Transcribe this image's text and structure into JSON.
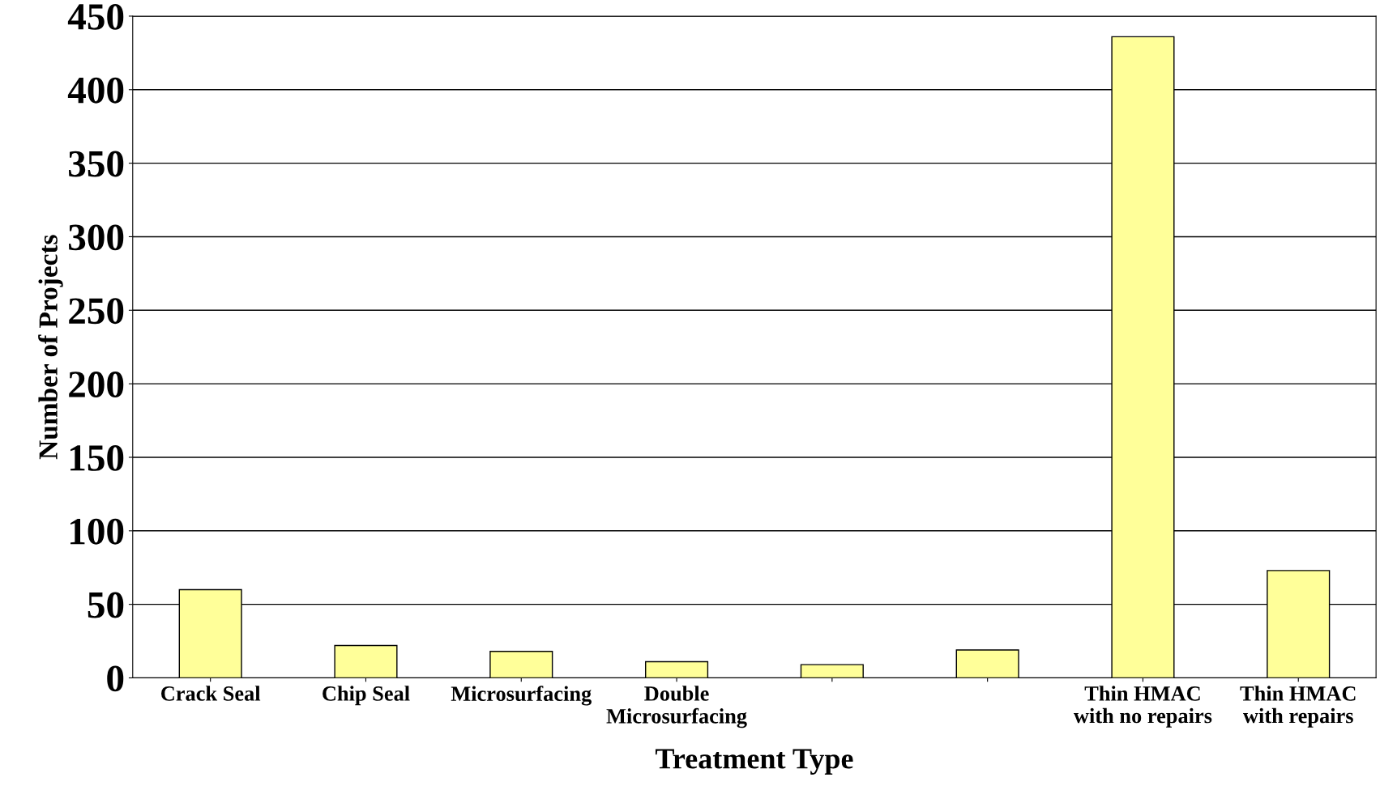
{
  "chart_data": {
    "type": "bar",
    "xlabel": "Treatment Type",
    "ylabel": "Number of Projects",
    "categories": [
      "Crack Seal",
      "Chip Seal",
      "Microsurfacing",
      "Double\nMicrosurfacing",
      null,
      null,
      "Thin HMAC\nwith no repairs",
      "Thin HMAC\nwith repairs"
    ],
    "values": [
      60,
      22,
      18,
      11,
      9,
      19,
      436,
      73
    ],
    "color": "#ffff99",
    "ylim": [
      0,
      450
    ],
    "yticks": [
      0,
      50,
      100,
      150,
      200,
      250,
      300,
      350,
      400,
      450
    ],
    "grid": "y"
  }
}
